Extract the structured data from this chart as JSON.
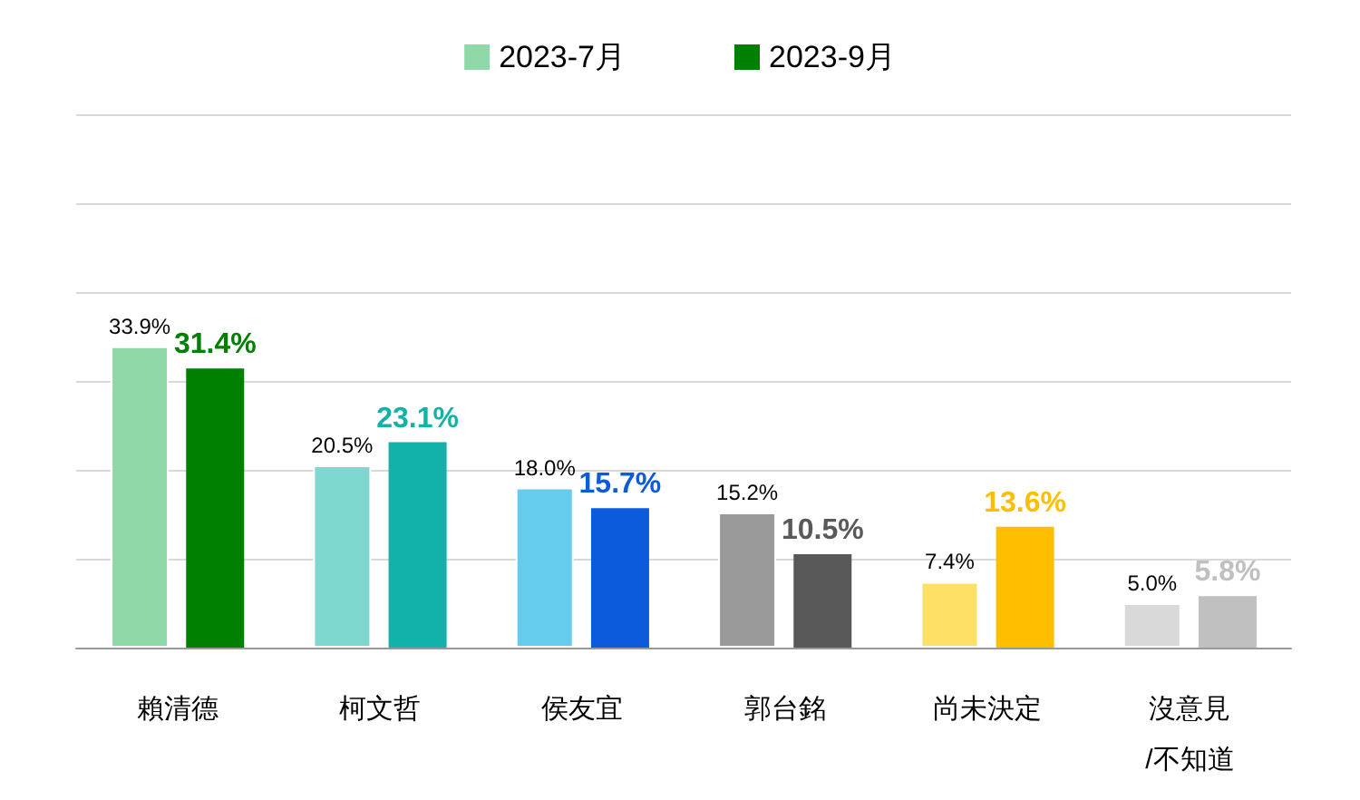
{
  "chart_data": {
    "type": "bar",
    "categories": [
      "賴清德",
      "柯文哲",
      "侯友宜",
      "郭台銘",
      "尚未決定",
      "沒意見\n/不知道"
    ],
    "series": [
      {
        "name": "2023-7月",
        "color": "#8fd9a8",
        "colors": [
          "#8fd9a8",
          "#7ed8d0",
          "#66ccee",
          "#9a9a9a",
          "#ffe066",
          "#d9d9d9"
        ],
        "values": [
          33.9,
          20.5,
          18.0,
          15.2,
          7.4,
          5.0
        ],
        "value_labels": [
          "33.9%",
          "20.5%",
          "18.0%",
          "15.2%",
          "7.4%",
          "5.0%"
        ]
      },
      {
        "name": "2023-9月",
        "color": "#008000",
        "colors": [
          "#008000",
          "#13b2a8",
          "#0b5bdc",
          "#595959",
          "#ffbf00",
          "#c0c0c0"
        ],
        "values": [
          31.4,
          23.1,
          15.7,
          10.5,
          13.6,
          5.8
        ],
        "value_labels": [
          "31.4%",
          "23.1%",
          "15.7%",
          "10.5%",
          "13.6%",
          "5.8%"
        ]
      }
    ],
    "ylim": [
      0,
      60
    ],
    "yticks": [
      {
        "value": 0,
        "label": null
      },
      {
        "value": 10,
        "label": null
      },
      {
        "value": 20,
        "label": null
      },
      {
        "value": 30,
        "label": null
      },
      {
        "value": 40,
        "label": null
      },
      {
        "value": 50,
        "label": null
      },
      {
        "value": 60,
        "label": null
      }
    ],
    "grid": "y",
    "legend": "top",
    "tick_labels": "x"
  }
}
